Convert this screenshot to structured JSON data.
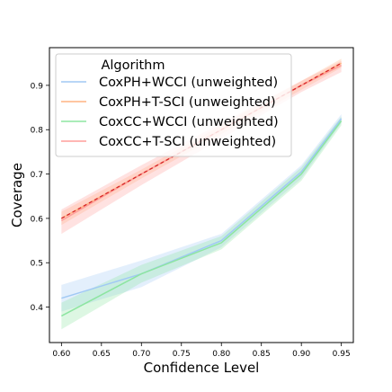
{
  "chart_data": {
    "type": "line",
    "xlabel": "Confidence Level",
    "ylabel": "Coverage",
    "xlim": [
      0.585,
      0.965
    ],
    "ylim": [
      0.32,
      0.985
    ],
    "x_ticks": [
      "0.60",
      "0.65",
      "0.70",
      "0.75",
      "0.80",
      "0.85",
      "0.90",
      "0.95"
    ],
    "y_ticks": [
      "0.4",
      "0.5",
      "0.6",
      "0.7",
      "0.8",
      "0.9"
    ],
    "grid": false,
    "legend_position": "top-left",
    "legend_title": "Algorithm",
    "x": [
      0.6,
      0.7,
      0.8,
      0.9,
      0.95
    ],
    "series": [
      {
        "name": "CoxPH+WCCI (unweighted)",
        "color": "#a1c9f4",
        "style": "solid",
        "values": [
          0.42,
          0.475,
          0.55,
          0.705,
          0.825
        ],
        "lower": [
          0.39,
          0.445,
          0.535,
          0.69,
          0.815
        ],
        "upper": [
          0.45,
          0.505,
          0.565,
          0.72,
          0.835
        ]
      },
      {
        "name": "CoxPH+T-SCI (unweighted)",
        "color": "#ffb482",
        "style": "solid",
        "values": [
          0.6,
          0.7,
          0.8,
          0.9,
          0.95
        ],
        "lower": [
          0.585,
          0.69,
          0.79,
          0.89,
          0.94
        ],
        "upper": [
          0.615,
          0.71,
          0.81,
          0.91,
          0.96
        ]
      },
      {
        "name": "CoxCC+WCCI (unweighted)",
        "color": "#8de5a1",
        "style": "solid",
        "values": [
          0.38,
          0.475,
          0.545,
          0.7,
          0.82
        ],
        "lower": [
          0.35,
          0.455,
          0.53,
          0.685,
          0.81
        ],
        "upper": [
          0.41,
          0.495,
          0.56,
          0.715,
          0.83
        ]
      },
      {
        "name": "CoxCC+T-SCI (unweighted)",
        "color": "#ff9f9b",
        "style": "solid",
        "values": [
          0.595,
          0.7,
          0.8,
          0.9,
          0.945
        ],
        "lower": [
          0.565,
          0.675,
          0.78,
          0.885,
          0.93
        ],
        "upper": [
          0.62,
          0.72,
          0.815,
          0.91,
          0.955
        ]
      }
    ],
    "reference_line": {
      "x": [
        0.6,
        0.95
      ],
      "y": [
        0.6,
        0.95
      ],
      "color": "#d62728",
      "style": "dashed"
    }
  }
}
